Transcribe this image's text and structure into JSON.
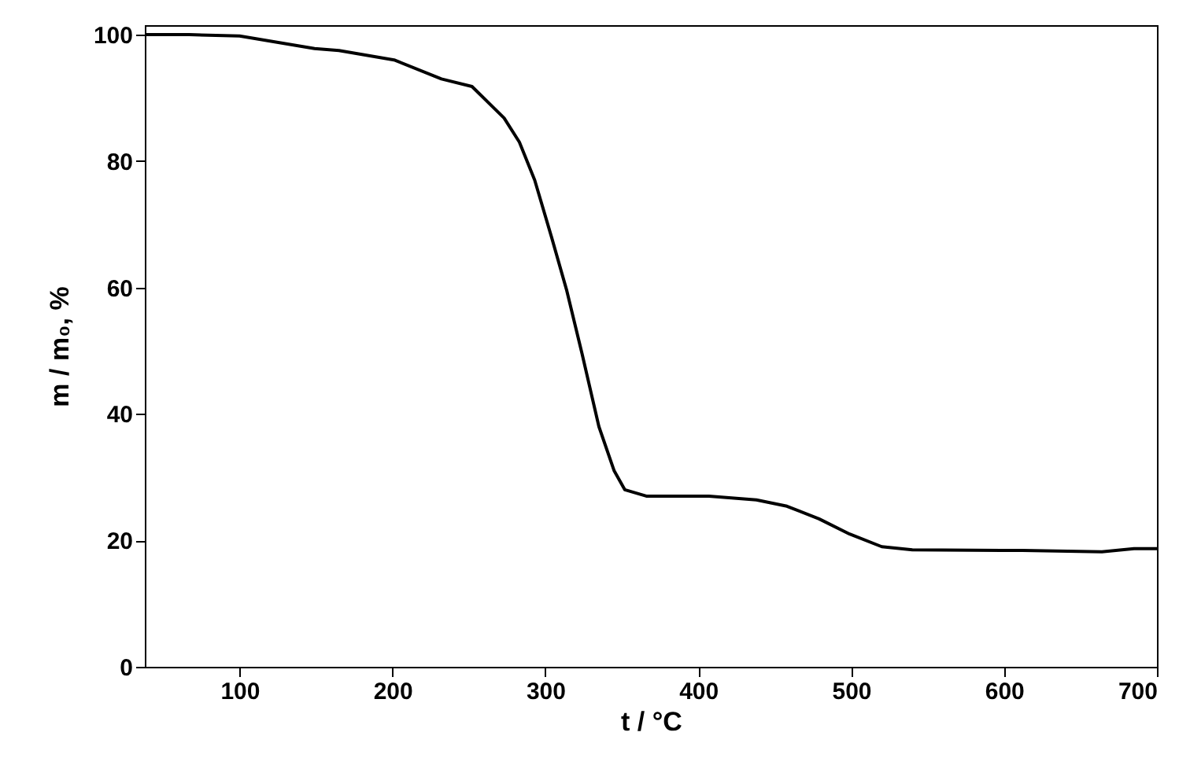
{
  "chart_data": {
    "type": "line",
    "xlabel": "t / °C",
    "ylabel": "m / m₀, %",
    "x": [
      38,
      67,
      100,
      149,
      165,
      201,
      232,
      252,
      273,
      283,
      293,
      304,
      314,
      324,
      335,
      345,
      352,
      366,
      407,
      438,
      458,
      479,
      499,
      520,
      540,
      612,
      664,
      685,
      700
    ],
    "series": [
      {
        "color": "#000000",
        "values": [
          100,
          100,
          99.8,
          97.8,
          97.5,
          96,
          93,
          91.8,
          86.8,
          83,
          77,
          68,
          59.5,
          49.5,
          38,
          31,
          28,
          27,
          27,
          26.4,
          25.4,
          23.4,
          21,
          19,
          18.5,
          18.4,
          18.2,
          18.7,
          18.7
        ]
      }
    ],
    "xlim": [
      38,
      700
    ],
    "xticks": [
      100,
      200,
      300,
      400,
      500,
      600,
      700
    ],
    "ylim": [
      0,
      101.5
    ],
    "yticks": [
      0,
      20,
      40,
      60,
      80,
      100
    ],
    "grid": false,
    "marker": "none",
    "line_style": "solid"
  }
}
